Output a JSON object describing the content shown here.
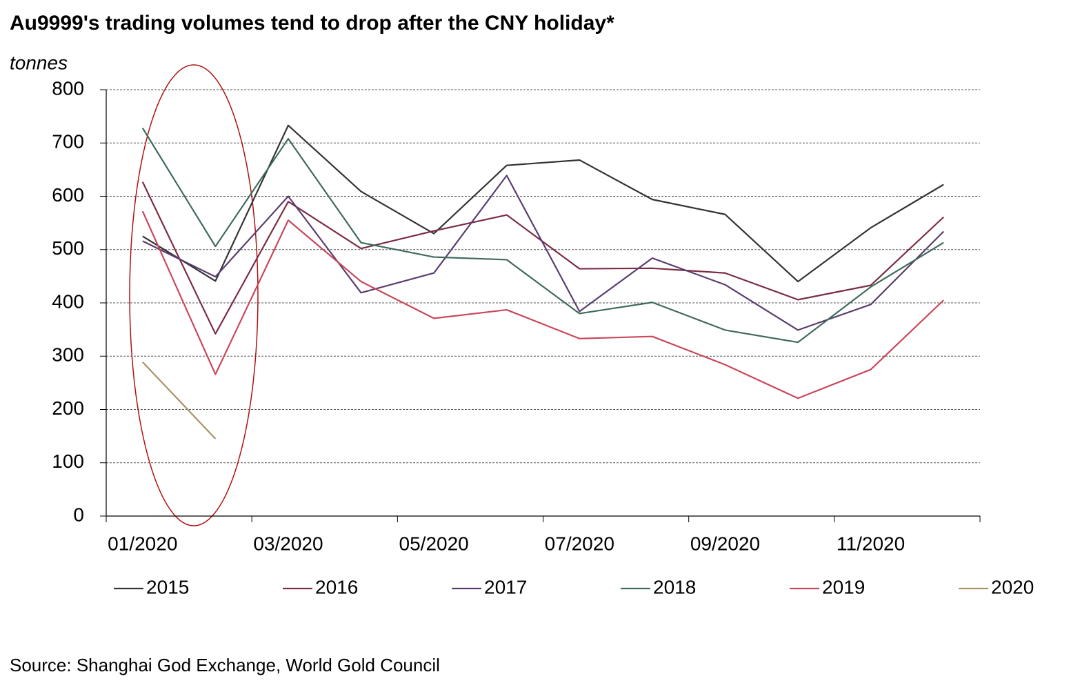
{
  "chart_data": {
    "type": "line",
    "title": "Au9999's trading volumes tend to drop after the CNY holiday*",
    "y_label": "tonnes",
    "source": "Source: Shanghai God Exchange, World Gold Council",
    "categories": [
      "01/2020",
      null,
      "03/2020",
      null,
      "05/2020",
      null,
      "07/2020",
      null,
      "09/2020",
      null,
      "11/2020",
      null
    ],
    "ylim": [
      0,
      800
    ],
    "yticks": [
      0,
      100,
      200,
      300,
      400,
      500,
      600,
      700,
      800
    ],
    "grid": true,
    "legend": "bottom",
    "series": [
      {
        "name": "2015",
        "color": "#333333",
        "values": [
          525,
          441,
          733,
          609,
          530,
          658,
          668,
          594,
          566,
          440,
          541,
          622
        ]
      },
      {
        "name": "2016",
        "color": "#7b2d42",
        "values": [
          627,
          342,
          590,
          502,
          535,
          565,
          464,
          465,
          456,
          406,
          433,
          561
        ]
      },
      {
        "name": "2017",
        "color": "#5a3d6e",
        "values": [
          516,
          449,
          600,
          419,
          456,
          639,
          384,
          484,
          434,
          349,
          397,
          534
        ]
      },
      {
        "name": "2018",
        "color": "#3f6b5a",
        "values": [
          728,
          506,
          708,
          513,
          486,
          481,
          380,
          401,
          349,
          326,
          430,
          513
        ]
      },
      {
        "name": "2019",
        "color": "#c9475a",
        "values": [
          572,
          266,
          555,
          440,
          371,
          387,
          333,
          337,
          284,
          221,
          275,
          405
        ]
      },
      {
        "name": "2020",
        "color": "#a89366",
        "values": [
          289,
          145,
          null,
          null,
          null,
          null,
          null,
          null,
          null,
          null,
          null,
          null
        ]
      }
    ]
  }
}
